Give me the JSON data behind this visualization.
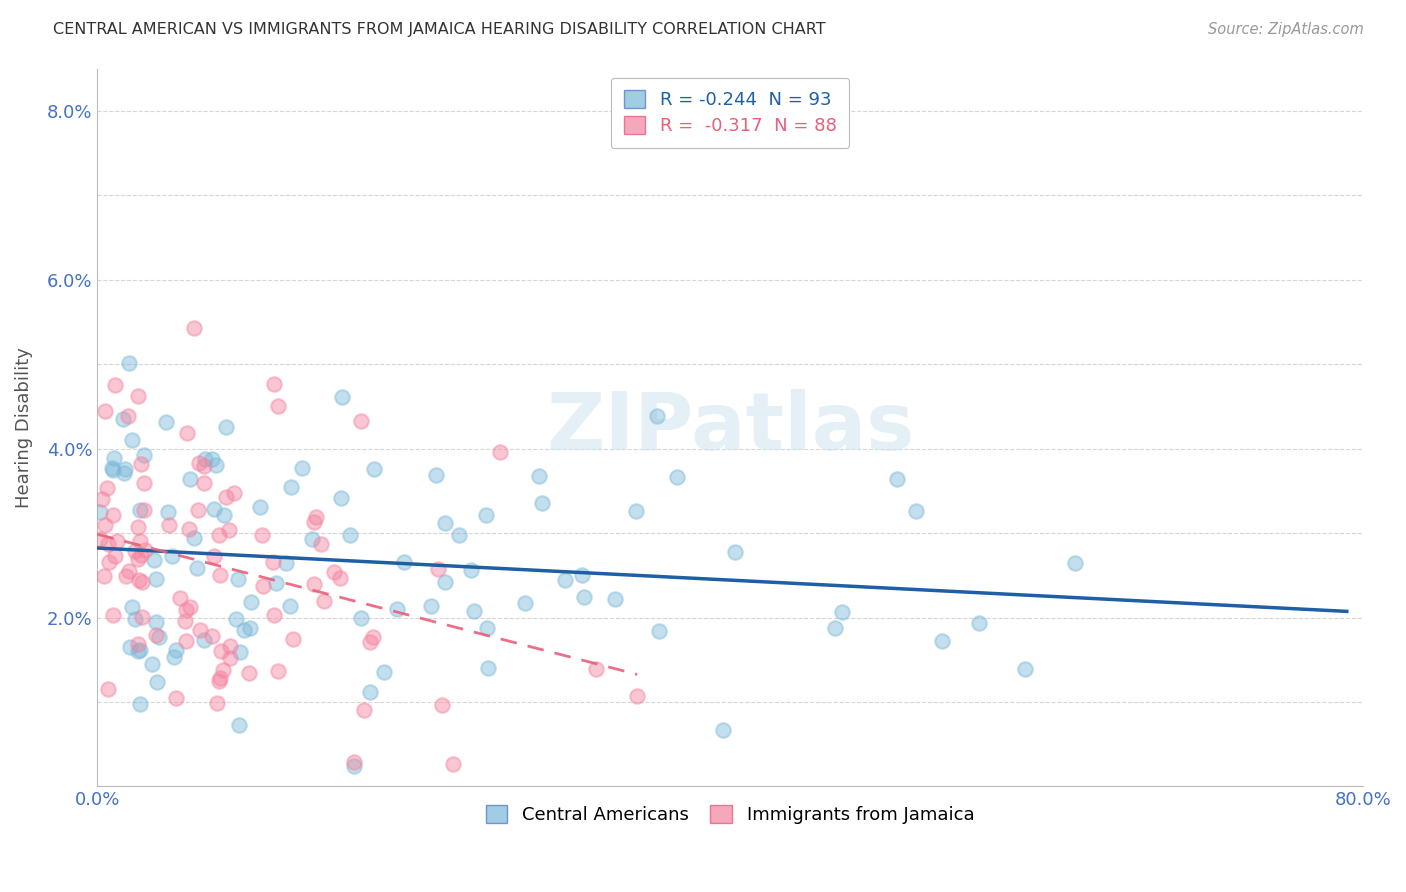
{
  "title": "CENTRAL AMERICAN VS IMMIGRANTS FROM JAMAICA HEARING DISABILITY CORRELATION CHART",
  "source": "Source: ZipAtlas.com",
  "ylabel": "Hearing Disability",
  "xlim": [
    0.0,
    0.8
  ],
  "ylim": [
    0.0,
    0.085
  ],
  "xticks": [
    0.0,
    0.1,
    0.2,
    0.3,
    0.4,
    0.5,
    0.6,
    0.7,
    0.8
  ],
  "xticklabels": [
    "0.0%",
    "",
    "",
    "",
    "",
    "",
    "",
    "",
    "80.0%"
  ],
  "yticks": [
    0.0,
    0.01,
    0.02,
    0.03,
    0.04,
    0.05,
    0.06,
    0.07,
    0.08
  ],
  "yticklabels": [
    "",
    "",
    "2.0%",
    "",
    "4.0%",
    "",
    "6.0%",
    "",
    "8.0%"
  ],
  "series1_label": "Central Americans",
  "series2_label": "Immigrants from Jamaica",
  "series1_color": "#7ab8d9",
  "series2_color": "#f4829e",
  "trend1_color": "#1f5fa6",
  "trend2_color": "#e8607a",
  "R1": -0.244,
  "N1": 93,
  "R2": -0.317,
  "N2": 88,
  "watermark": "ZIPatlas",
  "background_color": "#ffffff",
  "grid_color": "#cccccc"
}
